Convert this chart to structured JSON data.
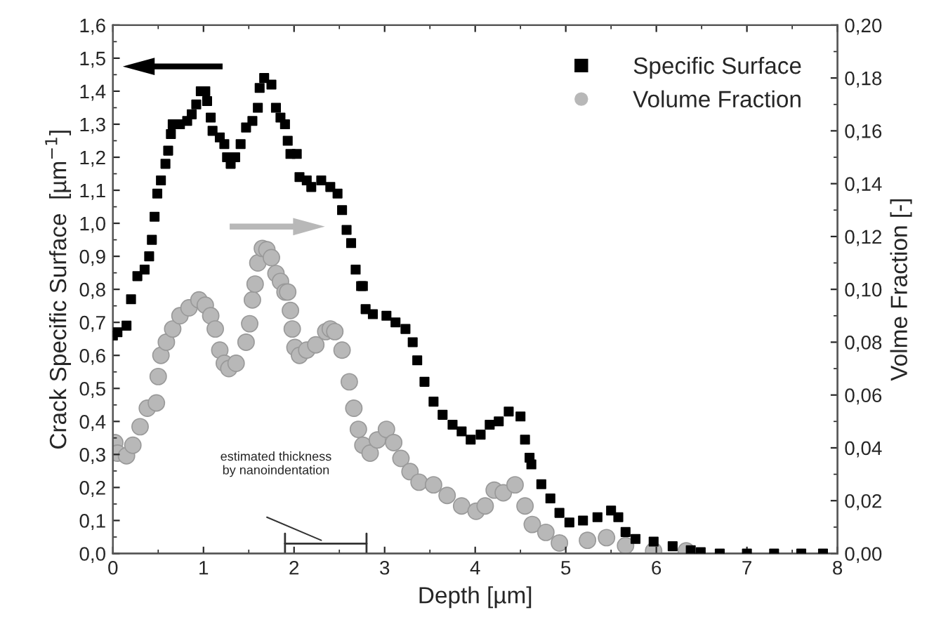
{
  "chart_data": {
    "type": "scatter",
    "xlabel": "Depth [µm]",
    "ylabel": "Crack Specific Surface  [µm$^{−1}$]",
    "y2label": "Volme Fraction [-]",
    "xlim": [
      0,
      8
    ],
    "xticks": [
      0,
      1,
      2,
      3,
      4,
      5,
      6,
      7,
      8
    ],
    "ylim": [
      0,
      1.6
    ],
    "yticks": [
      {
        "value": 0,
        "label": "0,0"
      },
      {
        "value": 0.1,
        "label": "0,1"
      },
      {
        "value": 0.2,
        "label": "0,2"
      },
      {
        "value": 0.3,
        "label": "0,3"
      },
      {
        "value": 0.4,
        "label": "0,4"
      },
      {
        "value": 0.5,
        "label": "0,5"
      },
      {
        "value": 0.6,
        "label": "0,6"
      },
      {
        "value": 0.7,
        "label": "0,7"
      },
      {
        "value": 0.8,
        "label": "0,8"
      },
      {
        "value": 0.9,
        "label": "0,9"
      },
      {
        "value": 1.0,
        "label": "1,0"
      },
      {
        "value": 1.1,
        "label": "1,1"
      },
      {
        "value": 1.2,
        "label": "1,2"
      },
      {
        "value": 1.3,
        "label": "1,3"
      },
      {
        "value": 1.4,
        "label": "1,4"
      },
      {
        "value": 1.5,
        "label": "1,5"
      },
      {
        "value": 1.6,
        "label": "1,6"
      }
    ],
    "y2lim": [
      0,
      0.2
    ],
    "y2ticks": [
      {
        "value": 0,
        "label": "0,00"
      },
      {
        "value": 0.02,
        "label": "0,02"
      },
      {
        "value": 0.04,
        "label": "0,04"
      },
      {
        "value": 0.06,
        "label": "0,06"
      },
      {
        "value": 0.08,
        "label": "0,08"
      },
      {
        "value": 0.1,
        "label": "0,10"
      },
      {
        "value": 0.12,
        "label": "0,12"
      },
      {
        "value": 0.14,
        "label": "0,14"
      },
      {
        "value": 0.16,
        "label": "0,16"
      },
      {
        "value": 0.18,
        "label": "0,18"
      },
      {
        "value": 0.2,
        "label": "0,20"
      }
    ],
    "legend": "top right",
    "grid": false,
    "annotations": [
      "estimated thickness\nby nanoindentation"
    ],
    "series": [
      {
        "name": "Specific Surface",
        "color": "#000000",
        "marker": "square",
        "x": [
          0,
          0.05,
          0.15,
          0.2,
          0.27,
          0.35,
          0.4,
          0.43,
          0.46,
          0.49,
          0.53,
          0.58,
          0.61,
          0.64,
          0.66,
          0.74,
          0.82,
          0.87,
          0.92,
          0.97,
          1.02,
          1.04,
          1.08,
          1.1,
          1.18,
          1.23,
          1.26,
          1.3,
          1.35,
          1.41,
          1.47,
          1.54,
          1.6,
          1.62,
          1.67,
          1.75,
          1.8,
          1.85,
          1.9,
          1.93,
          1.96,
          2.03,
          2.06,
          2.14,
          2.19,
          2.3,
          2.4,
          2.48,
          2.53,
          2.58,
          2.63,
          2.68,
          2.74,
          2.76,
          2.79,
          2.87,
          3.02,
          3.12,
          3.23,
          3.31,
          3.36,
          3.44,
          3.54,
          3.64,
          3.75,
          3.85,
          3.95,
          4.06,
          4.16,
          4.26,
          4.37,
          4.5,
          4.55,
          4.6,
          4.62,
          4.73,
          4.83,
          4.93,
          5.04,
          5.19,
          5.35,
          5.5,
          5.58,
          5.66,
          5.77,
          5.97,
          6.18,
          6.38,
          6.49,
          6.7,
          7.0,
          7.3,
          7.6,
          7.84
        ],
        "values": [
          0.66,
          0.67,
          0.69,
          0.77,
          0.84,
          0.86,
          0.9,
          0.95,
          1.02,
          1.09,
          1.13,
          1.18,
          1.22,
          1.27,
          1.3,
          1.3,
          1.31,
          1.33,
          1.36,
          1.4,
          1.4,
          1.37,
          1.32,
          1.28,
          1.26,
          1.24,
          1.2,
          1.18,
          1.2,
          1.24,
          1.29,
          1.31,
          1.35,
          1.41,
          1.44,
          1.42,
          1.35,
          1.32,
          1.3,
          1.25,
          1.21,
          1.21,
          1.14,
          1.13,
          1.11,
          1.13,
          1.11,
          1.09,
          1.04,
          0.98,
          0.94,
          0.86,
          0.81,
          0.81,
          0.74,
          0.725,
          0.72,
          0.7,
          0.68,
          0.64,
          0.585,
          0.52,
          0.46,
          0.42,
          0.39,
          0.37,
          0.345,
          0.36,
          0.39,
          0.4,
          0.43,
          0.415,
          0.345,
          0.29,
          0.27,
          0.21,
          0.167,
          0.123,
          0.094,
          0.1,
          0.11,
          0.13,
          0.11,
          0.065,
          0.044,
          0.036,
          0.022,
          0.01,
          0.004,
          0,
          0,
          0,
          0,
          0
        ]
      },
      {
        "name": "Volume Fraction",
        "color": "#b8b8b8",
        "marker": "circle",
        "axis": "y2",
        "x": [
          0.02,
          0.05,
          0.15,
          0.22,
          0.3,
          0.38,
          0.48,
          0.5,
          0.53,
          0.59,
          0.66,
          0.74,
          0.84,
          0.95,
          1.02,
          1.08,
          1.13,
          1.18,
          1.23,
          1.28,
          1.36,
          1.47,
          1.51,
          1.54,
          1.57,
          1.6,
          1.65,
          1.7,
          1.75,
          1.8,
          1.85,
          1.9,
          1.93,
          1.96,
          1.98,
          2.01,
          2.06,
          2.14,
          2.24,
          2.35,
          2.4,
          2.45,
          2.53,
          2.61,
          2.66,
          2.71,
          2.76,
          2.84,
          2.92,
          3.02,
          3.1,
          3.18,
          3.28,
          3.38,
          3.54,
          3.69,
          3.85,
          4.01,
          4.11,
          4.21,
          4.31,
          4.44,
          4.55,
          4.63,
          4.78,
          4.93,
          5.24,
          5.45,
          5.66,
          5.97,
          6.33
        ],
        "values": [
          0.042,
          0.038,
          0.037,
          0.041,
          0.048,
          0.055,
          0.057,
          0.067,
          0.075,
          0.08,
          0.085,
          0.09,
          0.093,
          0.096,
          0.094,
          0.09,
          0.085,
          0.077,
          0.072,
          0.07,
          0.072,
          0.08,
          0.087,
          0.096,
          0.102,
          0.11,
          0.1155,
          0.115,
          0.112,
          0.106,
          0.103,
          0.099,
          0.099,
          0.092,
          0.085,
          0.078,
          0.075,
          0.077,
          0.079,
          0.084,
          0.085,
          0.084,
          0.077,
          0.065,
          0.055,
          0.047,
          0.041,
          0.038,
          0.043,
          0.047,
          0.042,
          0.036,
          0.031,
          0.027,
          0.026,
          0.022,
          0.018,
          0.016,
          0.018,
          0.024,
          0.023,
          0.026,
          0.018,
          0.011,
          0.008,
          0.004,
          0.005,
          0.006,
          0.003,
          0.001,
          0.001
        ]
      }
    ]
  }
}
